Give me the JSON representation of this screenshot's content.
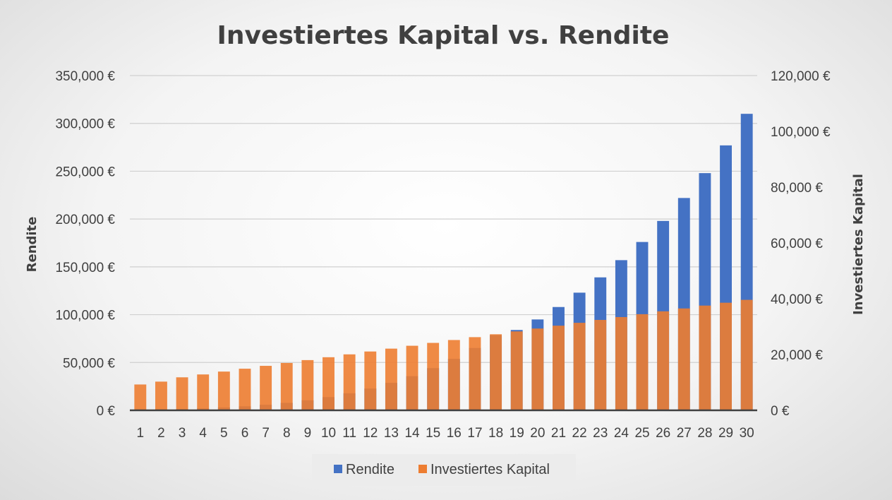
{
  "chart_data": {
    "type": "bar",
    "title": "Investiertes Kapital vs. Rendite",
    "categories": [
      "1",
      "2",
      "3",
      "4",
      "5",
      "6",
      "7",
      "8",
      "9",
      "10",
      "11",
      "12",
      "13",
      "14",
      "15",
      "16",
      "17",
      "18",
      "19",
      "20",
      "21",
      "22",
      "23",
      "24",
      "25",
      "26",
      "27",
      "28",
      "29",
      "30"
    ],
    "series": [
      {
        "name": "Rendite",
        "axis": "left",
        "color": "#4472C4",
        "values": [
          400,
          800,
          1300,
          2000,
          3000,
          4200,
          5800,
          7800,
          10500,
          13800,
          17800,
          22800,
          28700,
          35700,
          44100,
          53800,
          65200,
          78600,
          84000,
          95000,
          108000,
          123000,
          139000,
          157000,
          176000,
          198000,
          222000,
          248000,
          277000,
          310000
        ]
      },
      {
        "name": "Investiertes Kapital",
        "axis": "right",
        "color": "#ED7D31",
        "values": [
          10800,
          12000,
          13800,
          15000,
          16200,
          17400,
          18600,
          19800,
          21000,
          22200,
          23400,
          24600,
          25800,
          27000,
          28200,
          29400,
          30600,
          31800,
          33000,
          34200,
          35400,
          36600,
          37800,
          39000,
          40200,
          41400,
          42600,
          43800,
          45000,
          46200
        ]
      }
    ],
    "left_axis": {
      "label": "Rendite",
      "ylim": [
        0,
        350000
      ],
      "ticks": [
        "0 €",
        "50,000 €",
        "100,000 €",
        "150,000 €",
        "200,000 €",
        "250,000 €",
        "300,000 €",
        "350,000 €"
      ]
    },
    "right_axis": {
      "label": "Investiertes Kapital",
      "ylim": [
        0,
        140000
      ],
      "ticks": [
        "0 €",
        "20,000 €",
        "40,000 €",
        "60,000 €",
        "80,000 €",
        "100,000 €",
        "120,000 €"
      ]
    },
    "grid": true,
    "legend_position": "bottom"
  }
}
